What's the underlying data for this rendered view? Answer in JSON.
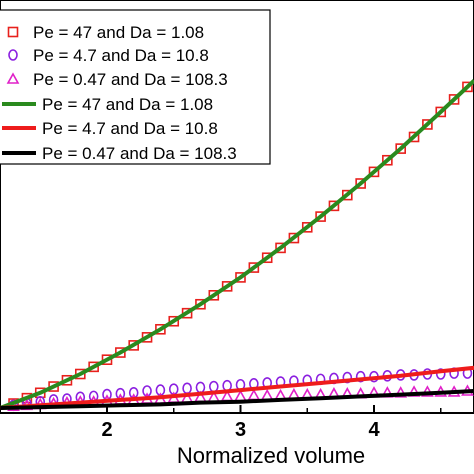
{
  "chart_data": {
    "type": "line",
    "xlabel": "Normalized volume",
    "ylabel": "",
    "xlim": [
      1.2,
      4.75
    ],
    "ylim": [
      0,
      3.7
    ],
    "xticks": [
      "2",
      "3",
      "4"
    ],
    "xtick_values": [
      2,
      3,
      4
    ],
    "legend_position": "top-left",
    "grid": false,
    "series": [
      {
        "name": "Pe = 47 and Da = 1.08",
        "kind": "marker",
        "marker": "square",
        "color": "#e8201c",
        "points": [
          [
            1.2,
            0.0
          ],
          [
            1.3,
            0.05
          ],
          [
            1.4,
            0.11
          ],
          [
            1.5,
            0.17
          ],
          [
            1.6,
            0.24
          ],
          [
            1.7,
            0.31
          ],
          [
            1.8,
            0.38
          ],
          [
            1.9,
            0.46
          ],
          [
            2.0,
            0.54
          ],
          [
            2.1,
            0.62
          ],
          [
            2.2,
            0.7
          ],
          [
            2.3,
            0.79
          ],
          [
            2.4,
            0.88
          ],
          [
            2.5,
            0.97
          ],
          [
            2.6,
            1.06
          ],
          [
            2.7,
            1.16
          ],
          [
            2.8,
            1.26
          ],
          [
            2.9,
            1.36
          ],
          [
            3.0,
            1.46
          ],
          [
            3.1,
            1.57
          ],
          [
            3.2,
            1.68
          ],
          [
            3.3,
            1.79
          ],
          [
            3.4,
            1.9
          ],
          [
            3.5,
            2.02
          ],
          [
            3.6,
            2.14
          ],
          [
            3.7,
            2.26
          ],
          [
            3.8,
            2.38
          ],
          [
            3.9,
            2.51
          ],
          [
            4.0,
            2.64
          ],
          [
            4.1,
            2.77
          ],
          [
            4.2,
            2.9
          ],
          [
            4.3,
            3.03
          ],
          [
            4.4,
            3.17
          ],
          [
            4.5,
            3.31
          ],
          [
            4.6,
            3.45
          ],
          [
            4.7,
            3.59
          ]
        ]
      },
      {
        "name": "Pe = 4.7 and Da = 10.8",
        "kind": "marker",
        "marker": "circle",
        "color": "#8b1fe0",
        "points": [
          [
            1.2,
            0.0
          ],
          [
            1.3,
            0.03
          ],
          [
            1.4,
            0.05
          ],
          [
            1.5,
            0.07
          ],
          [
            1.6,
            0.09
          ],
          [
            1.7,
            0.1
          ],
          [
            1.8,
            0.12
          ],
          [
            1.9,
            0.13
          ],
          [
            2.0,
            0.15
          ],
          [
            2.1,
            0.16
          ],
          [
            2.2,
            0.17
          ],
          [
            2.3,
            0.19
          ],
          [
            2.4,
            0.2
          ],
          [
            2.5,
            0.21
          ],
          [
            2.6,
            0.22
          ],
          [
            2.7,
            0.23
          ],
          [
            2.8,
            0.24
          ],
          [
            2.9,
            0.25
          ],
          [
            3.0,
            0.26
          ],
          [
            3.1,
            0.27
          ],
          [
            3.2,
            0.28
          ],
          [
            3.3,
            0.29
          ],
          [
            3.4,
            0.3
          ],
          [
            3.5,
            0.31
          ],
          [
            3.6,
            0.32
          ],
          [
            3.7,
            0.33
          ],
          [
            3.8,
            0.34
          ],
          [
            3.9,
            0.35
          ],
          [
            4.0,
            0.35
          ],
          [
            4.1,
            0.36
          ],
          [
            4.2,
            0.37
          ],
          [
            4.3,
            0.37
          ],
          [
            4.4,
            0.38
          ],
          [
            4.5,
            0.38
          ],
          [
            4.6,
            0.39
          ],
          [
            4.7,
            0.39
          ]
        ]
      },
      {
        "name": "Pe = 0.47 and Da = 108.3",
        "kind": "marker",
        "marker": "triangle",
        "color": "#e020c8",
        "points": [
          [
            1.2,
            0.0
          ],
          [
            1.3,
            0.02
          ],
          [
            1.4,
            0.03
          ],
          [
            1.5,
            0.04
          ],
          [
            1.6,
            0.05
          ],
          [
            1.7,
            0.06
          ],
          [
            1.8,
            0.07
          ],
          [
            1.9,
            0.07
          ],
          [
            2.0,
            0.08
          ],
          [
            2.1,
            0.09
          ],
          [
            2.2,
            0.09
          ],
          [
            2.3,
            0.1
          ],
          [
            2.4,
            0.1
          ],
          [
            2.5,
            0.11
          ],
          [
            2.6,
            0.11
          ],
          [
            2.7,
            0.12
          ],
          [
            2.8,
            0.12
          ],
          [
            2.9,
            0.13
          ],
          [
            3.0,
            0.13
          ],
          [
            3.1,
            0.14
          ],
          [
            3.2,
            0.14
          ],
          [
            3.3,
            0.14
          ],
          [
            3.4,
            0.15
          ],
          [
            3.5,
            0.15
          ],
          [
            3.6,
            0.15
          ],
          [
            3.7,
            0.16
          ],
          [
            3.8,
            0.16
          ],
          [
            3.9,
            0.16
          ],
          [
            4.0,
            0.17
          ],
          [
            4.1,
            0.17
          ],
          [
            4.2,
            0.17
          ],
          [
            4.3,
            0.18
          ],
          [
            4.4,
            0.18
          ],
          [
            4.5,
            0.18
          ],
          [
            4.6,
            0.18
          ],
          [
            4.7,
            0.19
          ]
        ]
      },
      {
        "name": "Pe = 47 and Da = 1.08",
        "kind": "line",
        "color": "#2a8a1e",
        "points": [
          [
            1.2,
            0.0
          ],
          [
            1.5,
            0.17
          ],
          [
            1.8,
            0.38
          ],
          [
            2.1,
            0.62
          ],
          [
            2.4,
            0.88
          ],
          [
            2.7,
            1.16
          ],
          [
            3.0,
            1.46
          ],
          [
            3.3,
            1.79
          ],
          [
            3.6,
            2.14
          ],
          [
            3.9,
            2.51
          ],
          [
            4.2,
            2.9
          ],
          [
            4.5,
            3.31
          ],
          [
            4.75,
            3.66
          ]
        ]
      },
      {
        "name": "Pe = 4.7 and Da = 10.8",
        "kind": "line",
        "color": "#ee1c1c",
        "points": [
          [
            1.2,
            0.0
          ],
          [
            1.5,
            0.03
          ],
          [
            1.8,
            0.06
          ],
          [
            2.1,
            0.09
          ],
          [
            2.4,
            0.12
          ],
          [
            2.7,
            0.16
          ],
          [
            3.0,
            0.2
          ],
          [
            3.3,
            0.24
          ],
          [
            3.6,
            0.28
          ],
          [
            3.9,
            0.32
          ],
          [
            4.2,
            0.36
          ],
          [
            4.5,
            0.41
          ],
          [
            4.75,
            0.45
          ]
        ]
      },
      {
        "name": "Pe = 0.47 and Da = 108.3",
        "kind": "line",
        "color": "#000000",
        "points": [
          [
            1.2,
            0.0
          ],
          [
            1.5,
            0.01
          ],
          [
            1.8,
            0.02
          ],
          [
            2.1,
            0.03
          ],
          [
            2.4,
            0.04
          ],
          [
            2.7,
            0.06
          ],
          [
            3.0,
            0.07
          ],
          [
            3.3,
            0.09
          ],
          [
            3.6,
            0.11
          ],
          [
            3.9,
            0.13
          ],
          [
            4.2,
            0.15
          ],
          [
            4.5,
            0.17
          ],
          [
            4.75,
            0.19
          ]
        ]
      }
    ]
  }
}
